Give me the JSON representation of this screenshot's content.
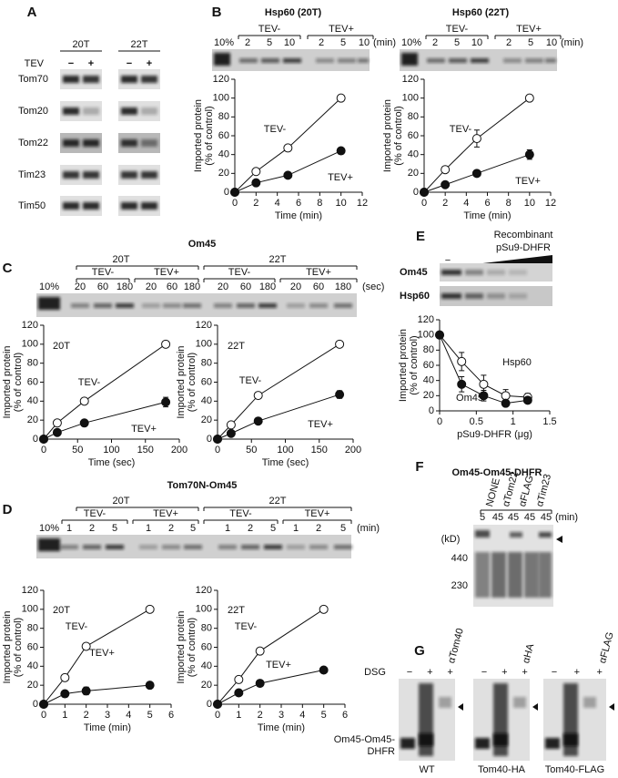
{
  "panels": {
    "A": {
      "label": "A",
      "columns": [
        "20T",
        "22T"
      ],
      "tev_label": "TEV",
      "lanes": [
        "−",
        "+",
        "−",
        "+"
      ],
      "rows": [
        "Tom70",
        "Tom20",
        "Tom22",
        "Tim23",
        "Tim50"
      ]
    },
    "B": {
      "label": "B",
      "gels": [
        {
          "title": "Hsp60 (20T)",
          "load": "10%",
          "groups": [
            "TEV-",
            "TEV+"
          ],
          "times": [
            2,
            5,
            10,
            2,
            5,
            10
          ],
          "unit": "(min)"
        },
        {
          "title": "Hsp60 (22T)",
          "load": "10%",
          "groups": [
            "TEV-",
            "TEV+"
          ],
          "times": [
            2,
            5,
            10,
            2,
            5,
            10
          ],
          "unit": "(min)"
        }
      ]
    },
    "C": {
      "label": "C",
      "title": "Om45",
      "strains": [
        "20T",
        "22T"
      ],
      "load": "10%",
      "groups": [
        "TEV-",
        "TEV+",
        "TEV-",
        "TEV+"
      ],
      "times": [
        20,
        60,
        180,
        20,
        60,
        180,
        20,
        60,
        180,
        20,
        60,
        180
      ],
      "unit": "(sec)"
    },
    "D": {
      "label": "D",
      "title": "Tom70N-Om45",
      "strains": [
        "20T",
        "22T"
      ],
      "load": "10%",
      "groups": [
        "TEV-",
        "TEV+",
        "TEV-",
        "TEV+"
      ],
      "times": [
        1,
        2,
        5,
        1,
        2,
        5,
        1,
        2,
        5,
        1,
        2,
        5
      ],
      "unit": "(min)"
    },
    "E": {
      "label": "E",
      "title_lines": [
        "Recombinant",
        "pSu9-DHFR"
      ],
      "none": "−",
      "rows": [
        "Om45",
        "Hsp60"
      ]
    },
    "F": {
      "label": "F",
      "title": "Om45-Om45-DHFR",
      "lanes": [
        "NONE",
        "αTom22",
        "αFLAG",
        "αTim23"
      ],
      "times": [
        5,
        45,
        45,
        45,
        45
      ],
      "unit": "(min)",
      "kd": "(kD)",
      "markers": [
        440,
        230
      ]
    },
    "G": {
      "label": "G",
      "dsg": "DSG",
      "band": [
        "Om45-Om45-",
        "DHFR"
      ],
      "gels": [
        {
          "lanes": [
            "−",
            "+",
            "+"
          ],
          "antibody": "αTom40",
          "name": "WT"
        },
        {
          "lanes": [
            "−",
            "+",
            "+"
          ],
          "antibody": "αHA",
          "name": "Tom40-HA"
        },
        {
          "lanes": [
            "−",
            "+",
            "+"
          ],
          "antibody": "αFLAG",
          "name": "Tom40-FLAG"
        }
      ]
    }
  },
  "chart_data": [
    {
      "type": "line",
      "y_label": [
        "Imported protein",
        "(% of control)"
      ],
      "x_label": "Time (min)",
      "x": [
        0,
        2,
        5,
        10
      ],
      "xlim": [
        0,
        12
      ],
      "xticks": [
        0,
        2,
        4,
        6,
        8,
        10,
        12
      ],
      "ylim": [
        0,
        120
      ],
      "yticks": [
        0,
        20,
        40,
        60,
        80,
        100,
        120
      ],
      "series": [
        {
          "name": "TEV-",
          "marker": "open",
          "values": [
            0,
            22,
            47,
            100
          ],
          "errors": [
            null,
            null,
            3,
            null
          ]
        },
        {
          "name": "TEV+",
          "marker": "filled",
          "values": [
            0,
            10,
            18,
            44
          ],
          "errors": [
            null,
            null,
            null,
            null
          ]
        }
      ]
    },
    {
      "type": "line",
      "y_label": [
        "Imported protein",
        "(% of control)"
      ],
      "x_label": "Time (min)",
      "x": [
        0,
        2,
        5,
        10
      ],
      "xlim": [
        0,
        12
      ],
      "xticks": [
        0,
        2,
        4,
        6,
        8,
        10,
        12
      ],
      "ylim": [
        0,
        120
      ],
      "yticks": [
        0,
        20,
        40,
        60,
        80,
        100,
        120
      ],
      "series": [
        {
          "name": "TEV-",
          "marker": "open",
          "values": [
            0,
            24,
            57,
            100
          ],
          "errors": [
            null,
            null,
            9,
            null
          ]
        },
        {
          "name": "TEV+",
          "marker": "filled",
          "values": [
            0,
            8,
            20,
            40
          ],
          "errors": [
            null,
            null,
            null,
            5
          ]
        }
      ]
    },
    {
      "type": "line",
      "label": "20T",
      "y_label": [
        "Imported protein",
        "(% of control)"
      ],
      "x_label": "Time (sec)",
      "x": [
        0,
        20,
        60,
        180
      ],
      "xlim": [
        0,
        200
      ],
      "xticks": [
        0,
        50,
        100,
        150,
        200
      ],
      "ylim": [
        0,
        120
      ],
      "yticks": [
        0,
        20,
        40,
        60,
        80,
        100,
        120
      ],
      "series": [
        {
          "name": "TEV-",
          "marker": "open",
          "values": [
            0,
            17,
            40,
            100
          ],
          "errors": [
            null,
            null,
            null,
            null
          ]
        },
        {
          "name": "TEV+",
          "marker": "filled",
          "values": [
            0,
            7,
            17,
            39
          ],
          "errors": [
            null,
            null,
            null,
            5
          ]
        }
      ]
    },
    {
      "type": "line",
      "label": "22T",
      "y_label": [
        "Imported protein",
        "(% of control)"
      ],
      "x_label": "Time (sec)",
      "x": [
        0,
        20,
        60,
        180
      ],
      "xlim": [
        0,
        200
      ],
      "xticks": [
        0,
        50,
        100,
        150,
        200
      ],
      "ylim": [
        0,
        120
      ],
      "yticks": [
        0,
        20,
        40,
        60,
        80,
        100,
        120
      ],
      "series": [
        {
          "name": "TEV-",
          "marker": "open",
          "values": [
            0,
            15,
            46,
            100
          ],
          "errors": [
            null,
            null,
            null,
            null
          ]
        },
        {
          "name": "TEV+",
          "marker": "filled",
          "values": [
            0,
            6,
            19,
            47
          ],
          "errors": [
            null,
            null,
            null,
            4
          ]
        }
      ]
    },
    {
      "type": "line",
      "label": "20T",
      "y_label": [
        "Imported protein",
        "(% of control)"
      ],
      "x_label": "Time (min)",
      "x": [
        0,
        1,
        2,
        5
      ],
      "xlim": [
        0,
        6
      ],
      "xticks": [
        0,
        1,
        2,
        3,
        4,
        5,
        6
      ],
      "ylim": [
        0,
        120
      ],
      "yticks": [
        0,
        20,
        40,
        60,
        80,
        100,
        120
      ],
      "series": [
        {
          "name": "TEV-",
          "marker": "open",
          "values": [
            0,
            28,
            61,
            100
          ],
          "errors": [
            null,
            null,
            null,
            null
          ]
        },
        {
          "name": "TEV+",
          "marker": "filled",
          "values": [
            0,
            11,
            14,
            20
          ],
          "errors": [
            null,
            null,
            4,
            null
          ]
        }
      ]
    },
    {
      "type": "line",
      "label": "22T",
      "y_label": [
        "Imported protein",
        "(% of control)"
      ],
      "x_label": "Time (min)",
      "x": [
        0,
        1,
        2,
        5
      ],
      "xlim": [
        0,
        6
      ],
      "xticks": [
        0,
        1,
        2,
        3,
        4,
        5,
        6
      ],
      "ylim": [
        0,
        120
      ],
      "yticks": [
        0,
        20,
        40,
        60,
        80,
        100,
        120
      ],
      "series": [
        {
          "name": "TEV-",
          "marker": "open",
          "values": [
            0,
            26,
            56,
            100
          ],
          "errors": [
            null,
            null,
            null,
            null
          ]
        },
        {
          "name": "TEV+",
          "marker": "filled",
          "values": [
            0,
            12,
            22,
            36
          ],
          "errors": [
            null,
            null,
            null,
            null
          ]
        }
      ]
    },
    {
      "type": "line",
      "y_label": [
        "Imported protein",
        "(% of control)"
      ],
      "x_label": "pSu9-DHFR (μg)",
      "x": [
        0,
        0.3,
        0.6,
        0.9,
        1.2
      ],
      "xlim": [
        0,
        1.5
      ],
      "xticks": [
        0,
        0.5,
        1,
        1.5
      ],
      "ylim": [
        0,
        120
      ],
      "yticks": [
        0,
        20,
        40,
        60,
        80,
        100,
        120
      ],
      "series": [
        {
          "name": "Hsp60",
          "marker": "open",
          "values": [
            100,
            65,
            35,
            20,
            18
          ],
          "errors": [
            null,
            12,
            12,
            8,
            5
          ]
        },
        {
          "name": "Om45",
          "marker": "filled",
          "values": [
            100,
            35,
            20,
            10,
            14
          ],
          "errors": [
            null,
            10,
            7,
            3,
            4
          ]
        }
      ]
    }
  ]
}
